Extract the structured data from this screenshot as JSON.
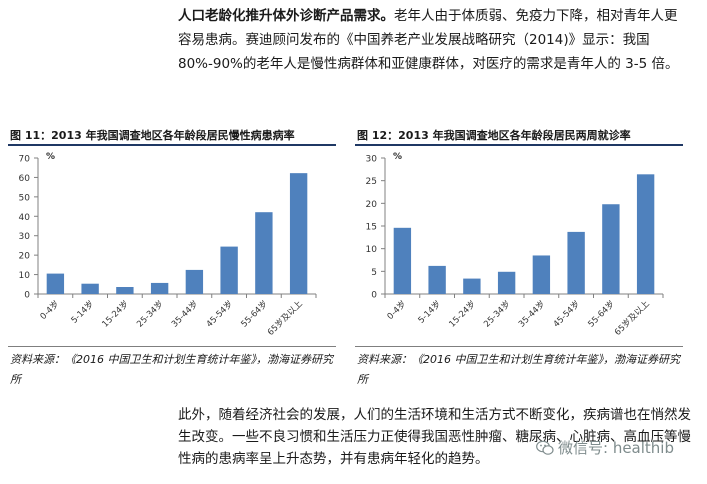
{
  "intro": {
    "bold": "人口老龄化推升体外诊断产品需求。",
    "text": "老年人由于体质弱、免疫力下降，相对青年人更容易患病。赛迪顾问发布的《中国养老产业发展战略研究（2014)》显示：我国 80%-90%的老年人是慢性病群体和亚健康群体，对医疗的需求是青年人的 3-5 倍。"
  },
  "figure_left": {
    "title": "图 11：2013 年我国调查地区各年龄段居民慢性病患病率",
    "source": "资料来源：《2016 中国卫生和计划生育统计年鉴》，渤海证券研究所"
  },
  "figure_right": {
    "title": "图 12：2013 年我国调查地区各年龄段居民两周就诊率",
    "source": "资料来源：《2016 中国卫生和计划生育统计年鉴》，渤海证券研究所"
  },
  "chart_data": [
    {
      "type": "bar",
      "ylabel": "%",
      "ylim": [
        0,
        70
      ],
      "yticks": [
        0,
        10,
        20,
        30,
        40,
        50,
        60,
        70
      ],
      "categories": [
        "0-4岁",
        "5-14岁",
        "15-24岁",
        "25-34岁",
        "35-44岁",
        "45-54岁",
        "55-64岁",
        "65岁及以上"
      ],
      "values": [
        10.5,
        5.3,
        3.6,
        5.7,
        12.4,
        24.4,
        42.1,
        62.2
      ],
      "bar_color": "#4f81bd",
      "grid": false
    },
    {
      "type": "bar",
      "ylabel": "%",
      "ylim": [
        0,
        30
      ],
      "yticks": [
        0,
        5,
        10,
        15,
        20,
        25,
        30
      ],
      "categories": [
        "0-4岁",
        "5-14岁",
        "15-24岁",
        "25-34岁",
        "35-44岁",
        "45-54岁",
        "55-64岁",
        "65岁及以上"
      ],
      "values": [
        14.6,
        6.2,
        3.4,
        4.9,
        8.5,
        13.7,
        19.8,
        26.4
      ],
      "bar_color": "#4f81bd",
      "grid": false
    }
  ],
  "closing": {
    "text": "此外，随着经济社会的发展，人们的生活环境和生活方式不断变化，疾病谱也在悄然发生改变。一些不良习惯和生活压力正使得我国恶性肿瘤、糖尿病、心脏病、高血压等慢性病的患病率呈上升态势，并有患病年轻化的趋势。"
  },
  "watermark": {
    "text": "微信号: healthib",
    "icon": "wechat-icon"
  }
}
